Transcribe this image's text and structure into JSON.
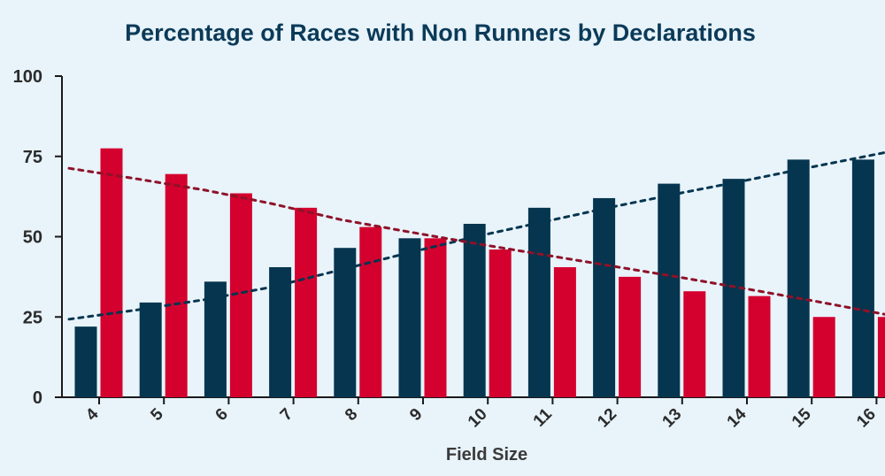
{
  "chart_data": {
    "type": "bar",
    "title": "Percentage of Races with Non Runners by Declarations",
    "xlabel": "Field Size",
    "ylabel": "",
    "categories": [
      "4",
      "5",
      "6",
      "7",
      "8",
      "9",
      "10",
      "11",
      "12",
      "13",
      "14",
      "15",
      "16"
    ],
    "series": [
      {
        "color": "#05354f",
        "values": [
          22,
          29.5,
          36,
          40.5,
          46.5,
          49.5,
          54,
          59,
          62,
          66.5,
          68,
          74,
          74
        ]
      },
      {
        "color": "#d4002e",
        "values": [
          77.5,
          69.5,
          63.5,
          59,
          53,
          49.5,
          46,
          40.5,
          37.5,
          33,
          31.5,
          25,
          25
        ]
      }
    ],
    "trendlines": [
      {
        "color": "#05354f",
        "style": "dotted",
        "values": [
          24.3,
          27.2,
          30.4,
          34.4,
          39.7,
          45,
          50.1,
          54.7,
          59.3,
          63.6,
          67.7,
          72,
          76.2
        ]
      },
      {
        "color": "#8e1228",
        "style": "dotted",
        "values": [
          71.3,
          68,
          64.5,
          60.2,
          55.3,
          51.5,
          47.8,
          44.3,
          40.8,
          37.3,
          33.6,
          29.8,
          25.8
        ]
      }
    ],
    "ylim": [
      0,
      100
    ],
    "yticks": [
      0,
      25,
      50,
      75,
      100
    ],
    "grid": false,
    "legend": "none"
  }
}
